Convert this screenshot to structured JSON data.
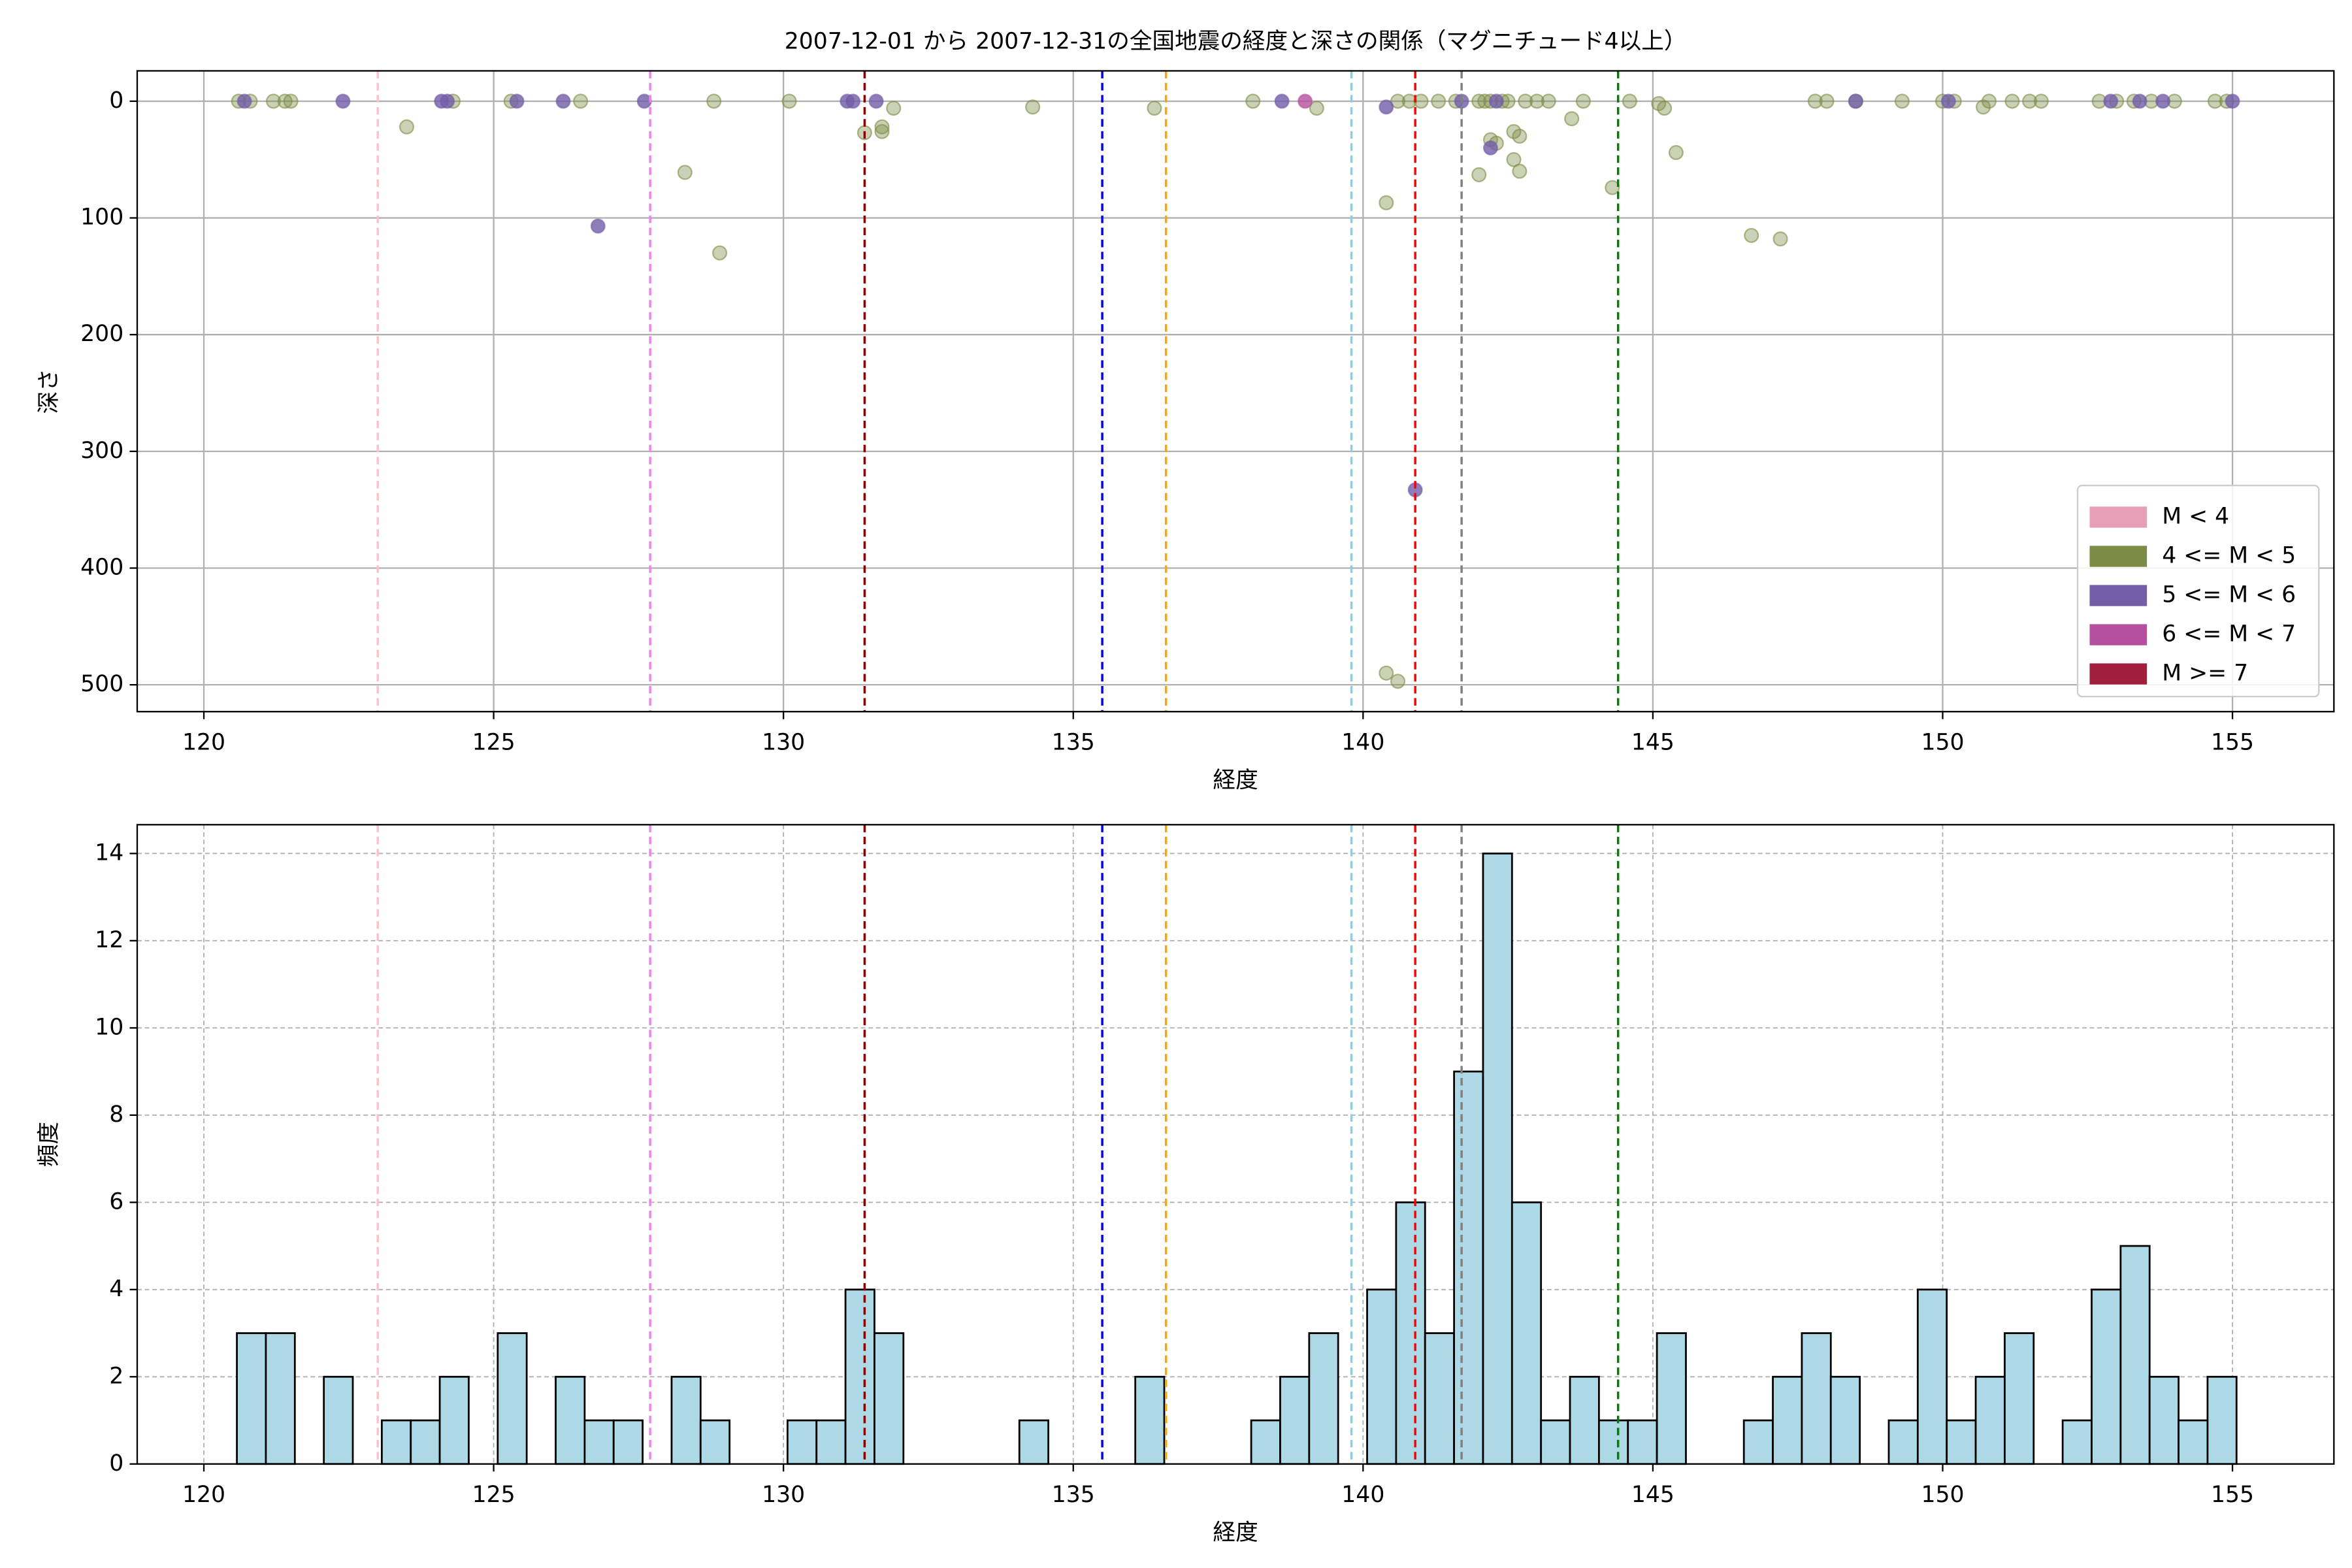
{
  "chart_data": [
    {
      "type": "scatter",
      "title": "2007-12-01 から 2007-12-31の全国地震の経度と深さの関係（マグニチュード4以上）",
      "xlabel": "経度",
      "ylabel": "深さ",
      "xlim": [
        118.85,
        156.75
      ],
      "ylim": [
        523,
        -26
      ],
      "xticks": [
        120,
        125,
        130,
        135,
        140,
        145,
        150,
        155
      ],
      "yticks": [
        0,
        100,
        200,
        300,
        400,
        500
      ],
      "grid": true,
      "legend": "lower right",
      "vlines": [
        {
          "x": 123.0,
          "color": "pink"
        },
        {
          "x": 127.7,
          "color": "violet"
        },
        {
          "x": 131.4,
          "color": "darkred"
        },
        {
          "x": 135.5,
          "color": "blue"
        },
        {
          "x": 136.6,
          "color": "orange"
        },
        {
          "x": 139.8,
          "color": "skyblue"
        },
        {
          "x": 140.9,
          "color": "red"
        },
        {
          "x": 141.7,
          "color": "gray"
        },
        {
          "x": 144.4,
          "color": "green"
        }
      ],
      "series": [
        {
          "name": "M < 4",
          "color": "#e79fb8",
          "x": [],
          "y": []
        },
        {
          "name": "4 <= M < 5",
          "color": "#7d8c45",
          "x": [
            120.6,
            120.8,
            121.2,
            121.4,
            121.5,
            123.5,
            124.3,
            125.3,
            126.5,
            128.3,
            128.9,
            128.8,
            130.1,
            131.4,
            131.7,
            131.7,
            131.9,
            134.3,
            136.4,
            138.1,
            139.2,
            140.4,
            140.4,
            140.6,
            140.6,
            140.8,
            141.0,
            141.3,
            141.6,
            142.0,
            142.1,
            142.2,
            142.0,
            142.2,
            142.3,
            142.4,
            142.5,
            142.6,
            142.6,
            142.7,
            142.7,
            142.8,
            143.0,
            143.2,
            143.6,
            143.8,
            144.3,
            144.6,
            145.1,
            145.2,
            145.4,
            146.7,
            147.2,
            147.8,
            148.0,
            148.5,
            149.3,
            150.0,
            150.2,
            150.7,
            150.8,
            151.2,
            151.5,
            151.7,
            152.7,
            153.0,
            153.3,
            153.6,
            154.0,
            154.7,
            154.9
          ],
          "y": [
            0,
            0,
            0,
            0,
            0,
            22,
            0,
            0,
            0,
            61,
            130,
            0,
            0,
            27,
            22,
            26,
            6,
            5,
            6,
            0,
            6,
            87,
            490,
            497,
            0,
            0,
            0,
            0,
            0,
            0,
            0,
            0,
            63,
            33,
            36,
            0,
            0,
            26,
            50,
            30,
            60,
            0,
            0,
            0,
            15,
            0,
            74,
            0,
            2,
            6,
            44,
            115,
            118,
            0,
            0,
            0,
            0,
            0,
            0,
            5,
            0,
            0,
            0,
            0,
            0,
            0,
            0,
            0,
            0,
            0,
            0
          ]
        },
        {
          "name": "5 <= M < 6",
          "color": "#735ca8",
          "x": [
            120.7,
            122.4,
            124.1,
            124.2,
            125.4,
            126.2,
            126.8,
            127.6,
            131.1,
            131.2,
            131.6,
            138.6,
            140.4,
            140.9,
            141.7,
            142.2,
            142.3,
            148.5,
            150.1,
            152.9,
            153.4,
            153.8,
            155.0
          ],
          "y": [
            0,
            0,
            0,
            0,
            0,
            0,
            107,
            0,
            0,
            0,
            0,
            0,
            5,
            333,
            0,
            40,
            0,
            0,
            0,
            0,
            0,
            0,
            0
          ]
        },
        {
          "name": "6 <= M < 7",
          "color": "#b5509e",
          "x": [
            139.0
          ],
          "y": [
            0
          ]
        },
        {
          "name": "M >= 7",
          "color": "#a11f3d",
          "x": [],
          "y": []
        }
      ]
    },
    {
      "type": "histogram",
      "xlabel": "経度",
      "ylabel": "頻度",
      "color": "lightblue",
      "xlim": [
        118.85,
        156.75
      ],
      "ylim": [
        0,
        14.66
      ],
      "xticks": [
        120,
        125,
        130,
        135,
        140,
        145,
        150,
        155
      ],
      "yticks": [
        0,
        2,
        4,
        6,
        8,
        10,
        12,
        14
      ],
      "grid": true,
      "vlines": [
        {
          "x": 123.0,
          "color": "pink"
        },
        {
          "x": 127.7,
          "color": "violet"
        },
        {
          "x": 131.4,
          "color": "darkred"
        },
        {
          "x": 135.5,
          "color": "blue"
        },
        {
          "x": 136.6,
          "color": "orange"
        },
        {
          "x": 139.8,
          "color": "skyblue"
        },
        {
          "x": 140.9,
          "color": "red"
        },
        {
          "x": 141.7,
          "color": "gray"
        },
        {
          "x": 144.4,
          "color": "green"
        }
      ],
      "bins": [
        120.57,
        121.07,
        121.57,
        122.07,
        122.57,
        123.07,
        123.57,
        124.07,
        124.57,
        125.07,
        125.57,
        126.07,
        126.57,
        127.07,
        127.57,
        128.07,
        128.57,
        129.07,
        129.57,
        130.07,
        130.57,
        131.07,
        131.57,
        132.07,
        132.57,
        133.07,
        133.57,
        134.07,
        134.57,
        135.07,
        135.57,
        136.07,
        136.57,
        137.07,
        137.57,
        138.07,
        138.57,
        139.07,
        139.57,
        140.07,
        140.57,
        141.07,
        141.57,
        142.07,
        142.57,
        143.07,
        143.57,
        144.07,
        144.57,
        145.07,
        145.57,
        146.07,
        146.57,
        147.07,
        147.57,
        148.07,
        148.57,
        149.07,
        149.57,
        150.07,
        150.57,
        151.07,
        151.57,
        152.07,
        152.57,
        153.07,
        153.57,
        154.07,
        154.57,
        155.07
      ],
      "values": [
        3,
        3,
        0,
        2,
        0,
        1,
        1,
        2,
        0,
        3,
        0,
        2,
        1,
        1,
        0,
        2,
        1,
        0,
        0,
        1,
        1,
        4,
        3,
        0,
        0,
        0,
        0,
        1,
        0,
        0,
        0,
        2,
        0,
        0,
        0,
        1,
        2,
        3,
        0,
        4,
        6,
        3,
        9,
        14,
        6,
        1,
        2,
        1,
        1,
        3,
        0,
        0,
        1,
        2,
        3,
        2,
        0,
        1,
        4,
        1,
        2,
        3,
        0,
        1,
        4,
        5,
        2,
        1,
        2
      ]
    }
  ]
}
